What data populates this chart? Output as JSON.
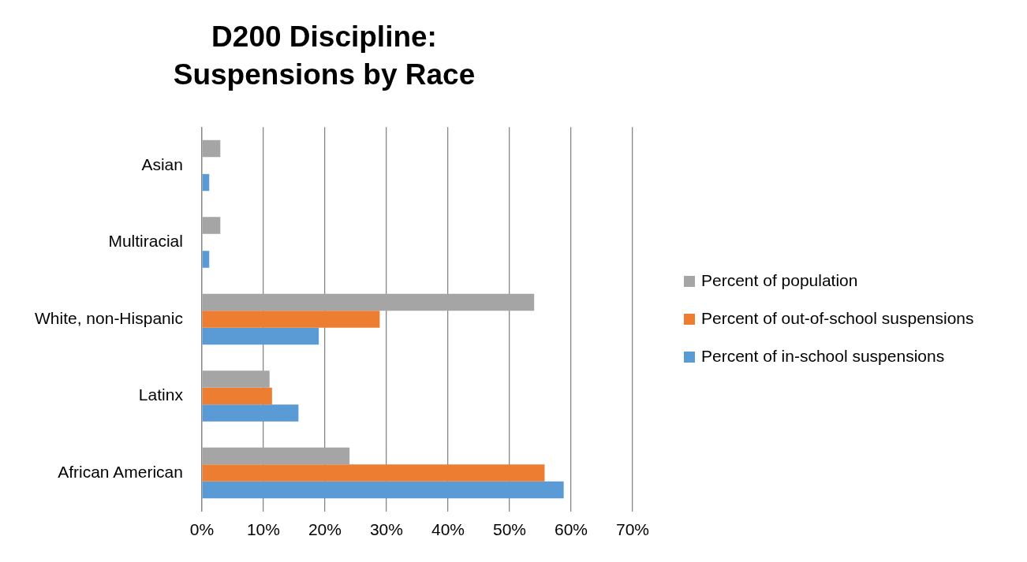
{
  "chart_data": {
    "type": "bar",
    "orientation": "horizontal",
    "title": "D200 Discipline:\nSuspensions by Race",
    "categories": [
      "Asian",
      "Multiracial",
      "White, non-Hispanic",
      "Latinx",
      "African American"
    ],
    "series": [
      {
        "name": "Percent of population",
        "color": "#a5a5a5",
        "values": [
          3,
          3,
          54,
          11,
          24
        ]
      },
      {
        "name": "Percent of out-of-school suspensions",
        "color": "#ed7d31",
        "values": [
          0,
          0,
          28.9,
          11.4,
          55.7
        ]
      },
      {
        "name": "Percent of in-school suspensions",
        "color": "#5b9bd5",
        "values": [
          1.2,
          1.2,
          19,
          15.7,
          58.8
        ]
      }
    ],
    "xlim": [
      0,
      70
    ],
    "xticks": [
      {
        "value": 0,
        "label": "0%"
      },
      {
        "value": 10,
        "label": "10%"
      },
      {
        "value": 20,
        "label": "20%"
      },
      {
        "value": 30,
        "label": "30%"
      },
      {
        "value": 40,
        "label": "40%"
      },
      {
        "value": 50,
        "label": "50%"
      },
      {
        "value": 60,
        "label": "60%"
      },
      {
        "value": 70,
        "label": "70%"
      }
    ],
    "grid": "x",
    "legend": "right"
  }
}
